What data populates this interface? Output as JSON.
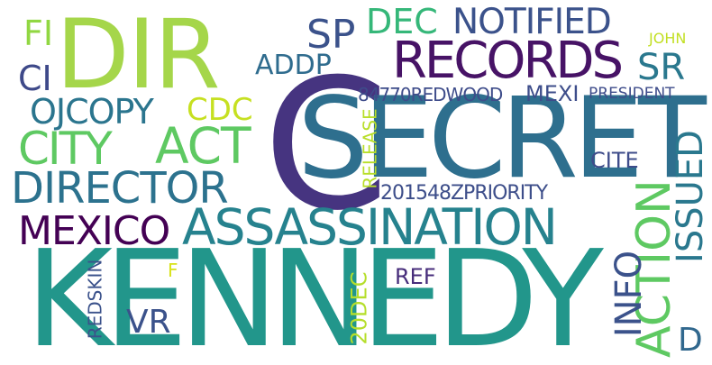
{
  "words": [
    {
      "text": "DIR",
      "color": "#a5d64a"
    },
    {
      "text": "C",
      "color": "#463480"
    },
    {
      "text": "SECRET",
      "color": "#2e6f8e"
    },
    {
      "text": "KENNEDY",
      "color": "#22968b"
    },
    {
      "text": "ASSASSINATION",
      "color": "#26828e"
    },
    {
      "text": "RECORDS",
      "color": "#471366"
    },
    {
      "text": "NOTIFIED",
      "color": "#3b528b"
    },
    {
      "text": "DEC",
      "color": "#35b779"
    },
    {
      "text": "SP",
      "color": "#3b528b"
    },
    {
      "text": "SR",
      "color": "#2a788e"
    },
    {
      "text": "FI",
      "color": "#91d742"
    },
    {
      "text": "CI",
      "color": "#3e4989"
    },
    {
      "text": "ADDP",
      "color": "#2f6c8e"
    },
    {
      "text": "JOHN",
      "color": "#c2df23"
    },
    {
      "text": "OJCOPY",
      "color": "#2b758e"
    },
    {
      "text": "CDC",
      "color": "#c6e021"
    },
    {
      "text": "84770REDWOOD",
      "color": "#3e4c8a"
    },
    {
      "text": "MEXI",
      "color": "#3d4d8a"
    },
    {
      "text": "PRESIDENT",
      "color": "#3e4c8a"
    },
    {
      "text": "CITY",
      "color": "#5ec962"
    },
    {
      "text": "ACT",
      "color": "#5ec962"
    },
    {
      "text": "DIRECTOR",
      "color": "#2c728e"
    },
    {
      "text": "RELEASE",
      "color": "#b8de29"
    },
    {
      "text": "CITE",
      "color": "#3e4c8a"
    },
    {
      "text": "201548ZPRIORITY",
      "color": "#3d4e8a"
    },
    {
      "text": "MEXICO",
      "color": "#440154"
    },
    {
      "text": "ISSUED",
      "color": "#2a788e"
    },
    {
      "text": "ACTION",
      "color": "#5ec962"
    },
    {
      "text": "INFO",
      "color": "#3b528b"
    },
    {
      "text": "REDSKIN",
      "color": "#3b528b"
    },
    {
      "text": "F",
      "color": "#d8e219"
    },
    {
      "text": "VR",
      "color": "#3b528b"
    },
    {
      "text": "20DEC",
      "color": "#b5de2b"
    },
    {
      "text": "REF",
      "color": "#472d7b"
    },
    {
      "text": "D",
      "color": "#31688e"
    }
  ]
}
